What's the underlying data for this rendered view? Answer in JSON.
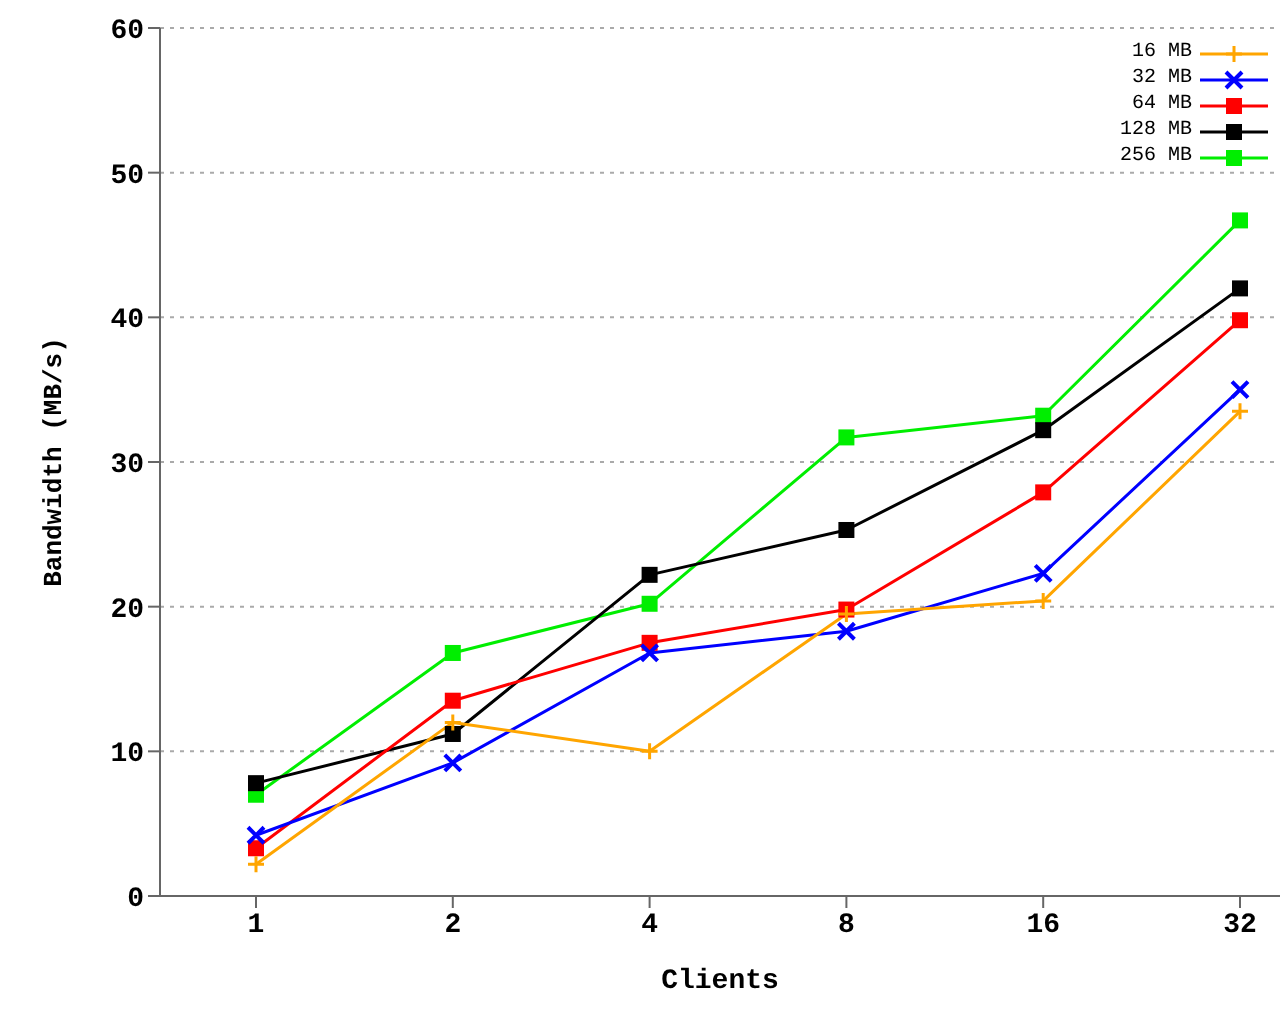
{
  "chart_data": {
    "type": "line",
    "xlabel": "Clients",
    "ylabel": "Bandwidth (MB/s)",
    "categories": [
      "1",
      "2",
      "4",
      "8",
      "16",
      "32"
    ],
    "ylim": [
      0,
      60
    ],
    "yticks": [
      0,
      10,
      20,
      30,
      40,
      50,
      60
    ],
    "grid": "y",
    "legend": "top right",
    "series": [
      {
        "name": "16 MB",
        "color": "#ffa500",
        "marker": "plus",
        "values": [
          2.2,
          12.0,
          10.0,
          19.5,
          20.4,
          33.5
        ]
      },
      {
        "name": "32 MB",
        "color": "#0000ff",
        "marker": "cross",
        "values": [
          4.2,
          9.2,
          16.8,
          18.3,
          22.3,
          35.0
        ]
      },
      {
        "name": "64 MB",
        "color": "#ff0000",
        "marker": "square",
        "values": [
          3.3,
          13.5,
          17.5,
          19.8,
          27.9,
          39.8
        ]
      },
      {
        "name": "128 MB",
        "color": "#000000",
        "marker": "square",
        "values": [
          7.8,
          11.2,
          22.2,
          25.3,
          32.2,
          42.0
        ]
      },
      {
        "name": "256 MB",
        "color": "#00ee00",
        "marker": "square",
        "values": [
          7.0,
          16.8,
          20.2,
          31.7,
          33.2,
          46.7
        ]
      }
    ]
  }
}
